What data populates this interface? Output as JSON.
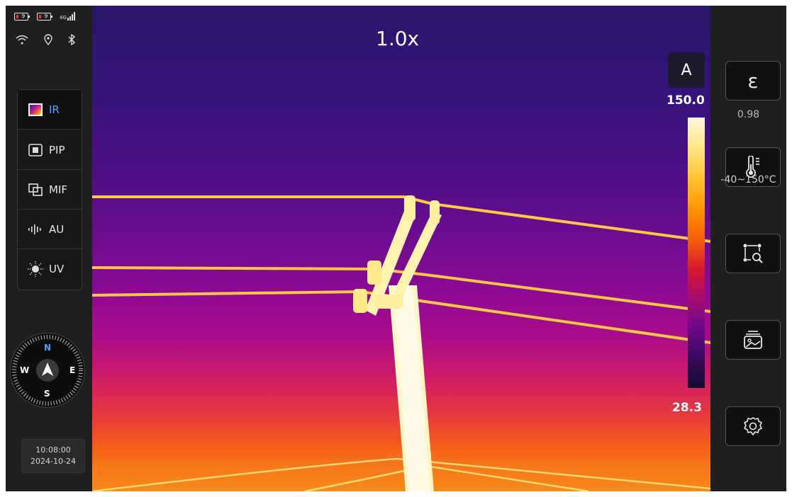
{
  "status": {
    "battery1": "9",
    "battery2": "9",
    "signal": "4G",
    "icons": [
      "battery-icon",
      "battery-charging-icon",
      "signal-4g-icon",
      "wifi-icon",
      "location-icon",
      "bluetooth-icon"
    ]
  },
  "modes": [
    {
      "label": "IR",
      "icon": "ir-palette-icon",
      "active": true
    },
    {
      "label": "PIP",
      "icon": "pip-icon",
      "active": false
    },
    {
      "label": "MIF",
      "icon": "mif-icon",
      "active": false
    },
    {
      "label": "AU",
      "icon": "audio-wave-icon",
      "active": false
    },
    {
      "label": "UV",
      "icon": "uv-sun-icon",
      "active": false
    }
  ],
  "compass": {
    "n": "N",
    "s": "S",
    "e": "E",
    "w": "W"
  },
  "clock": {
    "time": "10:08:00",
    "date": "2024-10-24"
  },
  "view": {
    "zoom": "1.0x"
  },
  "scale": {
    "mode": "A",
    "max": "150.0",
    "min": "28.3"
  },
  "right_panel": {
    "emissivity_symbol": "ε",
    "emissivity_value": "0.98",
    "temp_range_value": "-40~150°C",
    "buttons": [
      "emissivity-button",
      "temperature-range-button",
      "measure-region-button",
      "gallery-button",
      "settings-button"
    ]
  },
  "colors": {
    "accent": "#4ea3ff",
    "panel": "#1f1f1f"
  }
}
